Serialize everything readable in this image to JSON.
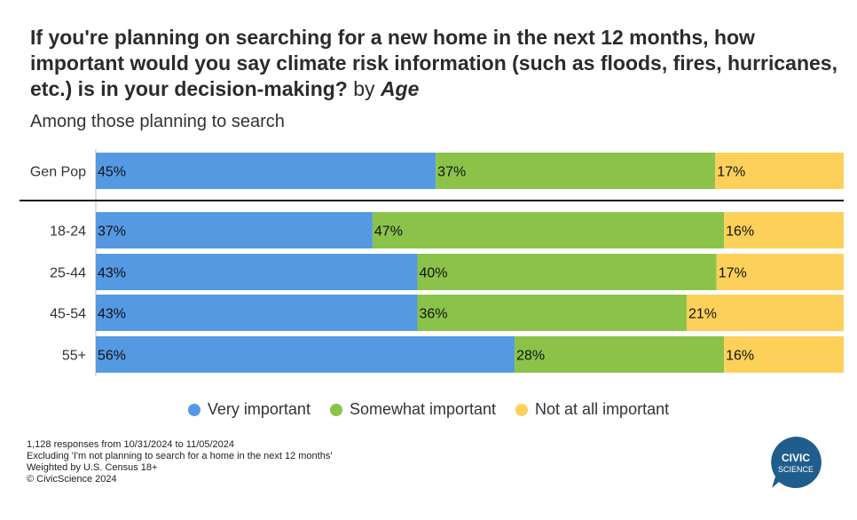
{
  "title": {
    "main": "If you're planning on searching for a new home in the next 12 months, how important would you say climate risk information (such as floods, fires, hurricanes, etc.) is in your decision-making?",
    "by": "by",
    "group": "Age"
  },
  "subtitle": "Among those planning to search",
  "chart_data": {
    "type": "bar",
    "orientation": "horizontal",
    "stacked": "100%",
    "categories": [
      "Gen Pop",
      "18-24",
      "25-44",
      "45-54",
      "55+"
    ],
    "series": [
      {
        "name": "Very important",
        "values": [
          45,
          37,
          43,
          43,
          56
        ],
        "labels": [
          "45%",
          "37%",
          "43%",
          "43%",
          "56%"
        ],
        "color": "#5599e3"
      },
      {
        "name": "Somewhat important",
        "values": [
          37,
          47,
          40,
          36,
          28
        ],
        "labels": [
          "37%",
          "47%",
          "40%",
          "36%",
          "28%"
        ],
        "color": "#8bc34a"
      },
      {
        "name": "Not at all important",
        "values": [
          17,
          16,
          17,
          21,
          16
        ],
        "labels": [
          "17%",
          "16%",
          "17%",
          "21%",
          "16%"
        ],
        "color": "#fdd05a"
      }
    ],
    "legend_position": "bottom"
  },
  "legend": [
    {
      "label": "Very important",
      "color": "#5599e3"
    },
    {
      "label": "Somewhat important",
      "color": "#8bc34a"
    },
    {
      "label": "Not at all important",
      "color": "#fdd05a"
    }
  ],
  "footnotes": [
    "1,128 responses from 10/31/2024 to 11/05/2024",
    "Excluding 'I'm not planning to search for a home in the next 12 months'",
    "Weighted by U.S. Census 18+",
    "© CivicScience 2024"
  ],
  "logo": {
    "line1": "CIVIC",
    "line2": "SCIENCE",
    "color": "#1f5e8c"
  }
}
